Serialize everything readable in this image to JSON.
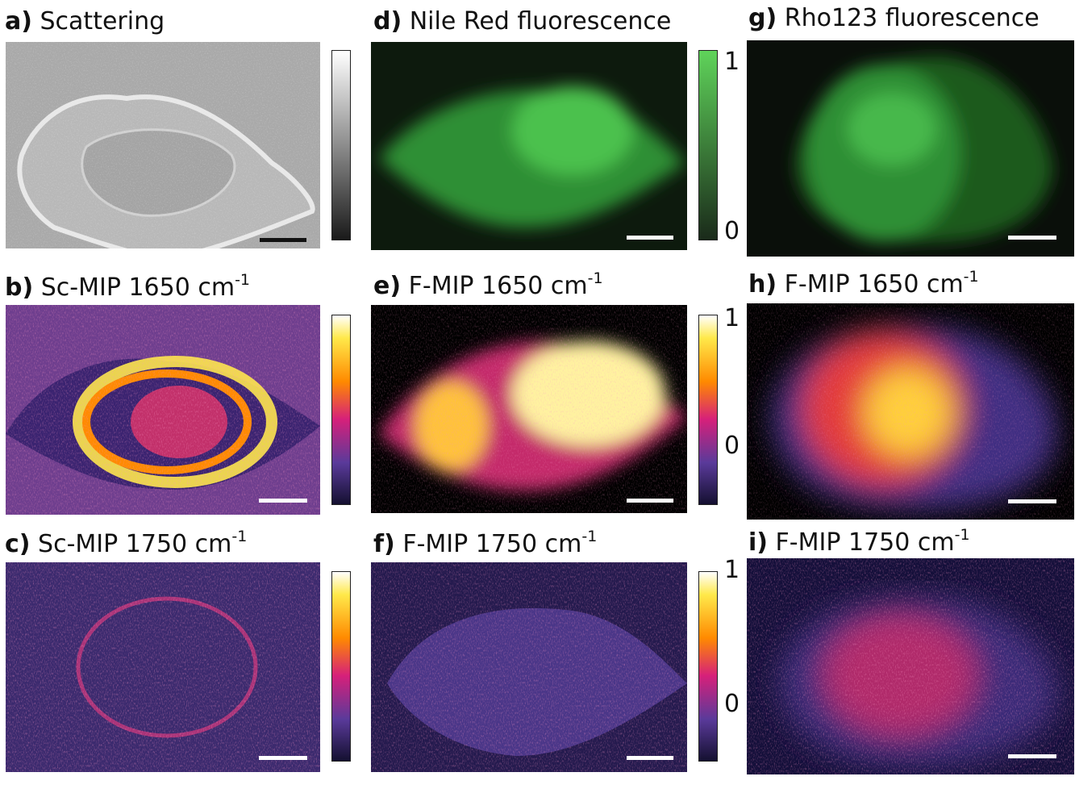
{
  "panels": {
    "a": {
      "letter": "a)",
      "label": "Scattering"
    },
    "b": {
      "letter": "b)",
      "label": "Sc-MIP 1650 cm",
      "sup": "-1"
    },
    "c": {
      "letter": "c)",
      "label": "Sc-MIP 1750 cm",
      "sup": "-1"
    },
    "d": {
      "letter": "d)",
      "label": "Nile Red fluorescence"
    },
    "e": {
      "letter": "e)",
      "label": "F-MIP 1650 cm",
      "sup": "-1"
    },
    "f": {
      "letter": "f)",
      "label": "F-MIP 1750 cm",
      "sup": "-1"
    },
    "g": {
      "letter": "g)",
      "label": "Rho123 fluorescence"
    },
    "h": {
      "letter": "h)",
      "label": "F-MIP 1650 cm",
      "sup": "-1"
    },
    "i": {
      "letter": "i)",
      "label": "F-MIP 1750 cm",
      "sup": "-1"
    }
  },
  "colorbars": {
    "green": {
      "max_label": "1",
      "min_label": "0"
    },
    "e": {
      "max_label": "1",
      "mid_label": "0"
    },
    "f": {
      "max_label": "1",
      "mid_label": "0"
    }
  },
  "colors": {
    "fluorescence_green": "#5fd35a",
    "inferno_dark": "#1a1040",
    "inferno_purple": "#5a3a9a",
    "inferno_magenta": "#d6207a",
    "inferno_orange": "#ff8a00",
    "inferno_yellow": "#ffe94a",
    "inferno_white": "#ffffff"
  }
}
